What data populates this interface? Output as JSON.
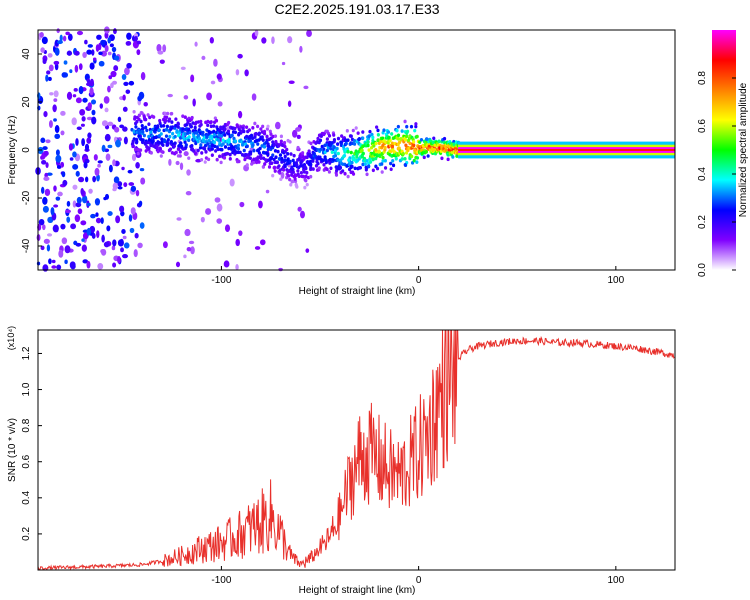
{
  "title": "C2E2.2025.191.03.17.E33",
  "chart_data": [
    {
      "type": "heatmap",
      "xlabel": "Height of straight line (km)",
      "ylabel": "Frequency (Hz)",
      "xlim": [
        -193,
        130
      ],
      "ylim": [
        -50,
        50
      ],
      "x_ticks": [
        -100,
        0,
        100
      ],
      "y_ticks": [
        -40,
        -20,
        0,
        20,
        40
      ],
      "colorbar": {
        "label": "Normalized spectral amplitude",
        "range": [
          0,
          1
        ],
        "ticks": [
          "0.0",
          "0.2",
          "0.4",
          "0.6",
          "0.8"
        ],
        "colors": [
          "#ffffff",
          "#8000ff",
          "#0000ff",
          "#00ffff",
          "#00ff00",
          "#ffff00",
          "#ff8000",
          "#ff0000",
          "#ff00ff"
        ]
      },
      "ridge": {
        "x": [
          -140,
          -120,
          -100,
          -80,
          -65,
          -58,
          -50,
          -40,
          -30,
          -20,
          -10,
          0,
          10,
          20,
          130
        ],
        "freq": [
          7,
          6,
          4,
          2,
          -5,
          -7,
          0,
          -2,
          -1,
          1,
          2,
          1,
          1,
          0,
          0
        ],
        "peak_amplitude": [
          0.35,
          0.4,
          0.4,
          0.35,
          0.3,
          0.25,
          0.35,
          0.45,
          0.6,
          0.85,
          0.9,
          0.95,
          0.95,
          1.0,
          1.0
        ]
      }
    },
    {
      "type": "line",
      "xlabel": "Height of straight line (km)",
      "ylabel": "SNR (10 * v/v)",
      "y_multiplier": "(x10⁴)",
      "xlim": [
        -193,
        130
      ],
      "ylim": [
        0,
        1.33
      ],
      "x_ticks": [
        -100,
        0,
        100
      ],
      "y_ticks": [
        "0.2",
        "0.4",
        "0.6",
        "0.8",
        "1.0",
        "1.2"
      ],
      "color": "#e8302b",
      "series": [
        {
          "x": [
            -193,
            -160,
            -140,
            -130,
            -120,
            -110,
            -100,
            -90,
            -80,
            -75,
            -70,
            -65,
            -60,
            -55,
            -50,
            -45,
            -40,
            -35,
            -30,
            -25,
            -20,
            -15,
            -10,
            -5,
            0,
            5,
            10,
            15,
            20,
            25,
            30,
            40,
            50,
            60,
            70,
            80,
            90,
            100,
            110,
            120,
            130
          ],
          "y": [
            0.01,
            0.02,
            0.03,
            0.05,
            0.08,
            0.12,
            0.15,
            0.2,
            0.26,
            0.3,
            0.2,
            0.08,
            0.03,
            0.06,
            0.12,
            0.18,
            0.3,
            0.48,
            0.62,
            0.65,
            0.6,
            0.55,
            0.52,
            0.58,
            0.66,
            0.75,
            0.92,
            1.05,
            1.17,
            1.22,
            1.24,
            1.26,
            1.27,
            1.27,
            1.26,
            1.26,
            1.25,
            1.24,
            1.23,
            1.21,
            1.19
          ]
        }
      ]
    }
  ]
}
